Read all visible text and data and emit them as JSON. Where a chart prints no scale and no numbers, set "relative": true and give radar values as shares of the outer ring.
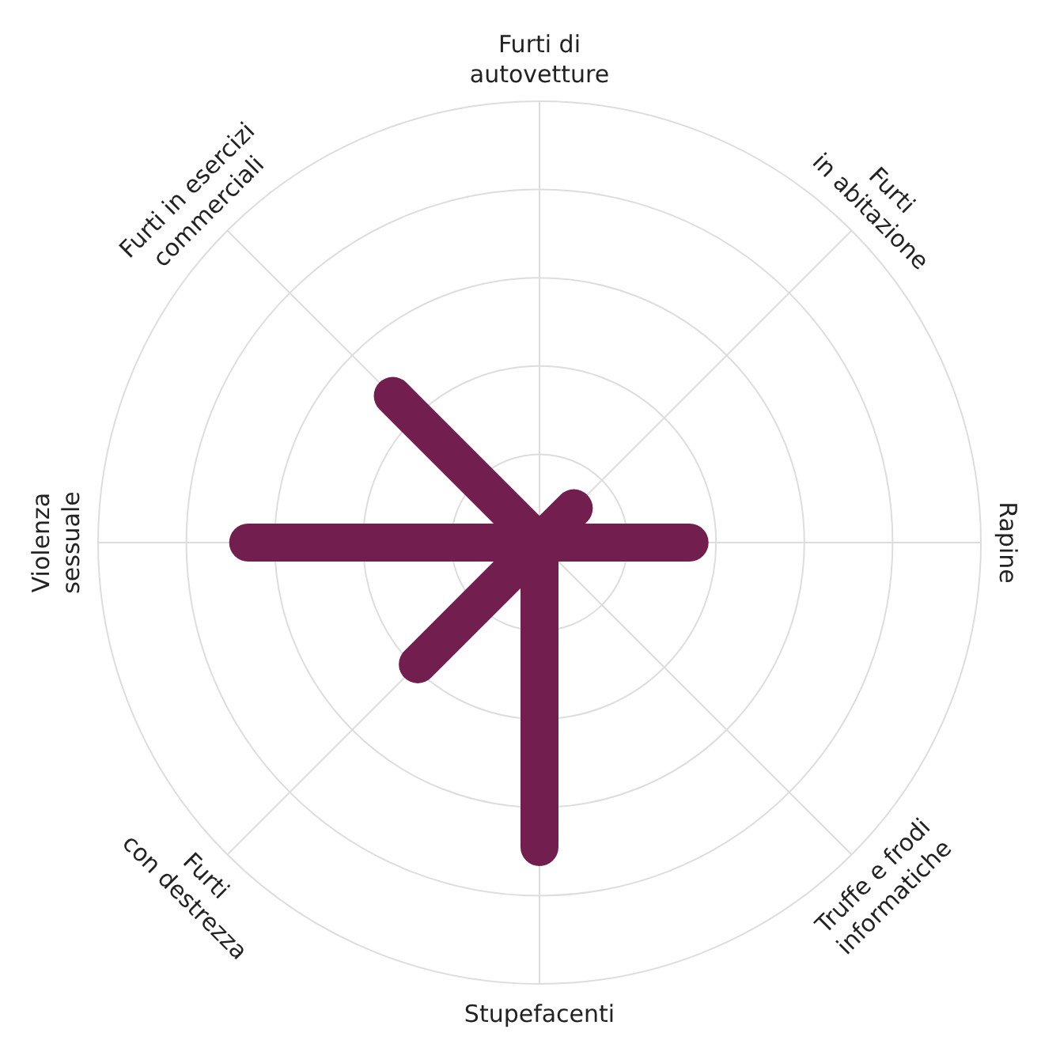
{
  "chart_data": {
    "type": "radar",
    "relative": true,
    "grid": true,
    "categories": [
      "Furti di\nautovetture",
      "Furti\nin abitazione",
      "Rapine",
      "Truffe e frodi\ninformatiche",
      "Stupefacenti",
      "Furti\ncon destrezza",
      "Violenza\nsessuale",
      "Furti in esercizi\ncommerciali"
    ],
    "series": [
      {
        "color": "#721f50",
        "values": [
          0,
          0.11,
          0.34,
          0,
          0.69,
          0.39,
          0.66,
          0.47
        ]
      }
    ]
  }
}
